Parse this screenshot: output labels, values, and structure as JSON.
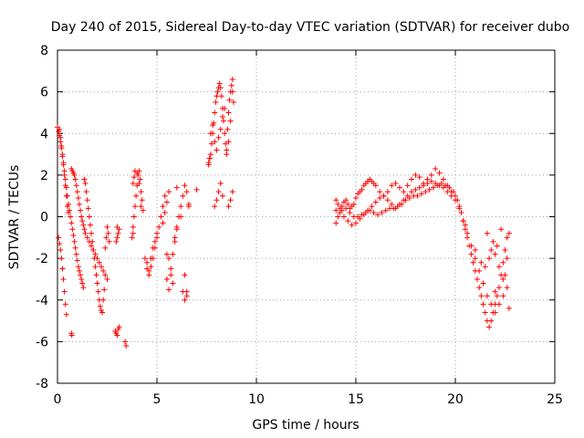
{
  "chart_data": {
    "type": "scatter",
    "title": "Day 240 of 2015, Sidereal Day-to-day VTEC variation (SDTVAR) for receiver dubo",
    "xlabel": "GPS time / hours",
    "ylabel": "SDTVAR / TECUs",
    "xlim": [
      0,
      25
    ],
    "ylim": [
      -8,
      8
    ],
    "xticks": [
      0,
      5,
      10,
      15,
      20,
      25
    ],
    "yticks": [
      -8,
      -6,
      -4,
      -2,
      0,
      2,
      4,
      6,
      8
    ],
    "grid": true,
    "marker": "+",
    "color": "#ff0000",
    "series": [
      {
        "name": "SDTVAR",
        "x": [
          0.0,
          0.1,
          0.15,
          0.2,
          0.25,
          0.3,
          0.35,
          0.4,
          0.45,
          0.5,
          0.55,
          0.6,
          0.65,
          0.7,
          0.75,
          0.8,
          0.85,
          0.9,
          0.95,
          1.0,
          1.05,
          1.1,
          1.15,
          1.2,
          1.25,
          1.3,
          1.35,
          1.4,
          1.45,
          1.5,
          1.55,
          1.6,
          1.65,
          1.7,
          1.75,
          1.8,
          1.85,
          1.9,
          1.95,
          2.0,
          2.05,
          2.1,
          2.15,
          2.2,
          2.25,
          2.3,
          2.35,
          2.4,
          2.45,
          2.5,
          2.55,
          2.6,
          0.05,
          0.1,
          0.15,
          0.2,
          0.25,
          0.3,
          0.35,
          0.4,
          0.45,
          0.5,
          0.55,
          0.7,
          0.75,
          0.8,
          0.85,
          0.9,
          0.95,
          1.0,
          1.05,
          1.1,
          1.15,
          1.2,
          1.25,
          1.3,
          1.35,
          1.4,
          1.5,
          1.6,
          1.7,
          1.8,
          1.9,
          2.0,
          2.1,
          2.2,
          2.3,
          2.4,
          2.5,
          0.05,
          0.1,
          0.15,
          0.2,
          0.25,
          0.3,
          0.35,
          0.4,
          0.45,
          0.7,
          0.72,
          2.9,
          2.95,
          3.0,
          3.05,
          3.1,
          3.4,
          3.45,
          3.0,
          3.05,
          2.95,
          3.0,
          3.1,
          3.75,
          3.8,
          3.85,
          3.9,
          3.95,
          4.0,
          4.05,
          4.1,
          4.15,
          4.2,
          4.25,
          4.3,
          3.8,
          3.85,
          3.9,
          4.0,
          4.1,
          3.8,
          4.2,
          4.4,
          4.5,
          4.6,
          4.7,
          4.8,
          4.9,
          5.0,
          5.1,
          5.2,
          5.3,
          5.4,
          5.5,
          5.6,
          5.7,
          5.8,
          5.9,
          6.0,
          6.1,
          6.2,
          6.3,
          6.4,
          6.5,
          6.6,
          4.5,
          4.6,
          4.7,
          4.8,
          4.9,
          5.0,
          5.3,
          5.4,
          5.5,
          5.6,
          5.7,
          5.8,
          5.9,
          6.0,
          6.2,
          6.4,
          6.5,
          5.5,
          5.6,
          6.3,
          6.4,
          6.5,
          6.0,
          7.0,
          5.5,
          6.6,
          7.6,
          7.65,
          7.7,
          7.75,
          7.8,
          7.85,
          7.9,
          7.95,
          8.0,
          8.05,
          8.1,
          8.15,
          8.2,
          8.25,
          8.3,
          8.35,
          8.4,
          8.45,
          8.5,
          8.55,
          8.6,
          8.65,
          8.7,
          8.75,
          8.8,
          8.85,
          7.7,
          7.8,
          7.9,
          8.0,
          8.1,
          8.2,
          8.3,
          8.4,
          8.5,
          8.6,
          8.7,
          8.8,
          7.9,
          8.0,
          8.1,
          8.2,
          8.3,
          8.6,
          8.7,
          8.8,
          7.6,
          7.65,
          14.0,
          14.1,
          14.2,
          14.3,
          14.4,
          14.5,
          14.6,
          14.7,
          14.8,
          14.9,
          15.0,
          15.1,
          15.2,
          15.3,
          15.4,
          15.5,
          15.6,
          15.7,
          15.8,
          15.9,
          16.0,
          16.2,
          16.4,
          16.6,
          16.8,
          17.0,
          17.2,
          17.4,
          17.6,
          17.8,
          18.0,
          18.2,
          18.4,
          18.6,
          18.8,
          19.0,
          19.2,
          19.4,
          19.6,
          19.8,
          20.0,
          14.0,
          14.2,
          14.4,
          14.6,
          14.8,
          15.0,
          15.2,
          15.4,
          15.6,
          15.8,
          16.0,
          16.2,
          16.4,
          16.6,
          16.8,
          17.0,
          17.2,
          17.4,
          17.6,
          17.8,
          18.0,
          18.2,
          18.4,
          18.6,
          18.8,
          19.0,
          19.2,
          19.4,
          19.6,
          19.8,
          20.0,
          14.0,
          14.1,
          14.3,
          14.5,
          14.7,
          14.9,
          15.1,
          15.3,
          15.5,
          15.7,
          15.9,
          16.1,
          16.3,
          16.5,
          16.7,
          16.9,
          17.1,
          17.3,
          17.5,
          17.7,
          17.9,
          18.1,
          18.3,
          18.5,
          18.7,
          18.9,
          19.1,
          19.3,
          19.5,
          19.7,
          19.9,
          20.1,
          20.2,
          20.3,
          20.4,
          20.5,
          20.6,
          20.7,
          20.8,
          20.9,
          21.0,
          21.1,
          21.2,
          21.3,
          21.4,
          21.5,
          21.6,
          21.7,
          21.8,
          21.9,
          22.0,
          22.1,
          22.2,
          22.3,
          22.4,
          22.5,
          22.6,
          22.7,
          20.2,
          20.4,
          20.6,
          20.8,
          21.0,
          21.2,
          21.4,
          21.6,
          21.8,
          22.0,
          22.2,
          22.4,
          22.6,
          22.7,
          21.7,
          21.8,
          21.9,
          22.0,
          22.2,
          22.4,
          22.6,
          20.5,
          21.0,
          21.5,
          22.0,
          22.5,
          21.3,
          21.6,
          22.1,
          22.3
        ],
        "y": [
          4.3,
          4.2,
          3.8,
          3.4,
          3.0,
          2.6,
          2.2,
          1.8,
          1.4,
          1.0,
          0.6,
          0.3,
          0.0,
          -0.3,
          -0.6,
          -0.9,
          -1.2,
          -1.5,
          -1.8,
          -2.1,
          -2.4,
          -2.6,
          -2.8,
          -3.0,
          -3.2,
          -3.4,
          1.8,
          1.6,
          1.2,
          0.8,
          0.4,
          0.0,
          -0.4,
          -0.8,
          -1.2,
          -1.6,
          -2.0,
          -2.4,
          -2.8,
          -3.2,
          -3.6,
          -4.0,
          -4.3,
          -4.5,
          -4.6,
          -4.0,
          -3.5,
          -1.5,
          -1.0,
          -0.5,
          -0.8,
          -1.2,
          4.1,
          3.9,
          3.6,
          3.3,
          2.9,
          2.5,
          2.0,
          1.5,
          1.0,
          0.5,
          0.2,
          2.3,
          2.2,
          2.1,
          2.0,
          1.8,
          1.5,
          1.2,
          0.9,
          0.6,
          0.3,
          0.0,
          -0.2,
          -0.4,
          -0.6,
          -0.8,
          -1.0,
          -1.2,
          -1.4,
          -1.6,
          -1.8,
          -2.0,
          -2.2,
          -2.4,
          -2.6,
          -2.8,
          -3.0,
          -1.0,
          -1.3,
          -1.6,
          -2.0,
          -2.5,
          -3.0,
          -3.6,
          -4.2,
          -4.7,
          -5.6,
          -5.7,
          -5.5,
          -5.6,
          -5.7,
          -5.4,
          -5.3,
          -6.0,
          -6.2,
          -0.5,
          -0.8,
          -1.2,
          -1.0,
          -0.6,
          -1.0,
          -0.5,
          0.0,
          0.5,
          1.0,
          1.5,
          2.0,
          2.2,
          1.8,
          1.2,
          0.8,
          0.3,
          1.6,
          1.9,
          2.2,
          2.1,
          1.6,
          -0.8,
          0.5,
          -2.0,
          -2.5,
          -2.8,
          -2.4,
          -2.0,
          -1.5,
          -1.0,
          -0.5,
          0.0,
          0.5,
          1.0,
          -3.0,
          -3.5,
          -2.5,
          -1.8,
          -1.0,
          -0.5,
          0.0,
          0.5,
          1.0,
          1.5,
          1.2,
          0.5,
          -2.2,
          -2.6,
          -2.0,
          -1.5,
          -1.2,
          -0.8,
          -0.3,
          0.2,
          0.7,
          1.2,
          -2.8,
          -3.2,
          -1.2,
          -0.6,
          0.0,
          -2.8,
          -3.6,
          -3.0,
          -2.0,
          -3.6,
          -4.0,
          -3.8,
          1.4,
          1.3,
          -1.8,
          0.6,
          2.5,
          2.8,
          3.0,
          3.5,
          4.0,
          4.5,
          5.0,
          5.5,
          5.8,
          6.0,
          6.2,
          6.4,
          6.2,
          5.8,
          5.2,
          4.6,
          4.0,
          3.5,
          3.2,
          4.2,
          5.0,
          5.6,
          6.0,
          6.3,
          6.6,
          5.5,
          4.0,
          4.4,
          3.6,
          3.2,
          3.8,
          4.2,
          4.8,
          5.2,
          3.0,
          3.6,
          4.6,
          6.0,
          0.5,
          0.8,
          1.2,
          1.6,
          1.0,
          0.5,
          0.8,
          1.2,
          2.6,
          2.8,
          0.8,
          0.6,
          0.4,
          0.5,
          0.7,
          0.8,
          0.6,
          0.4,
          0.5,
          0.6,
          0.9,
          1.1,
          1.2,
          1.3,
          1.5,
          1.6,
          1.7,
          1.8,
          1.7,
          1.6,
          1.5,
          1.2,
          1.0,
          1.2,
          1.5,
          1.6,
          1.4,
          1.2,
          1.5,
          1.8,
          2.0,
          1.9,
          1.6,
          1.8,
          2.0,
          2.3,
          2.1,
          1.8,
          1.5,
          1.2,
          1.0,
          0.3,
          0.2,
          0.0,
          -0.2,
          -0.4,
          -0.3,
          -0.1,
          0.1,
          0.3,
          0.5,
          0.7,
          0.9,
          1.0,
          0.8,
          0.6,
          0.4,
          0.6,
          0.8,
          1.0,
          1.2,
          1.3,
          1.4,
          1.5,
          1.6,
          1.7,
          1.6,
          1.5,
          1.4,
          1.2,
          1.0,
          0.8,
          -0.3,
          0.0,
          0.3,
          0.4,
          0.2,
          0.0,
          0.0,
          0.1,
          0.2,
          0.3,
          0.2,
          0.1,
          0.2,
          0.3,
          0.4,
          0.4,
          0.5,
          0.6,
          0.8,
          0.9,
          1.0,
          1.0,
          1.1,
          1.2,
          1.3,
          1.4,
          1.5,
          1.6,
          1.5,
          1.4,
          1.2,
          0.8,
          0.5,
          0.2,
          -0.2,
          -0.6,
          -1.0,
          -1.4,
          -1.8,
          -2.2,
          -2.6,
          -3.0,
          -3.4,
          -3.8,
          -4.2,
          -4.6,
          -5.0,
          -5.3,
          -5.0,
          -4.6,
          -4.2,
          -3.8,
          -3.4,
          -2.8,
          -2.2,
          -1.6,
          -1.0,
          -0.8,
          0.4,
          -0.2,
          -0.8,
          -1.4,
          -2.0,
          -2.6,
          -3.2,
          -3.8,
          -4.2,
          -4.6,
          -4.2,
          -3.8,
          -3.4,
          -4.4,
          -2.0,
          -1.6,
          -1.2,
          -1.8,
          -2.4,
          -3.0,
          -2.0,
          -0.4,
          -1.6,
          -2.4,
          -3.6,
          -2.8,
          -2.2,
          -0.8,
          -1.4,
          -0.6
        ]
      }
    ]
  }
}
